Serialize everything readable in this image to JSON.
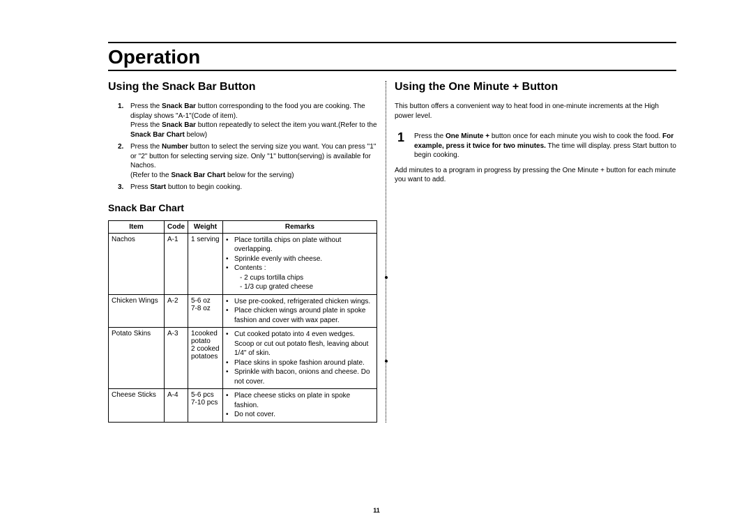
{
  "page_number": "11",
  "main_title": "Operation",
  "left": {
    "section_title": "Using the Snack Bar Button",
    "steps": [
      {
        "num": "1.",
        "html": "Press the <b>Snack Bar</b> button corresponding to the food you are cooking. The display shows \"A-1\"(Code of item).<br>Press the <b>Snack Bar</b> button repeatedly to select the item you want.(Refer to the <b>Snack Bar Chart</b> below)"
      },
      {
        "num": "2.",
        "html": "Press the <b>Number</b> button to select the serving size you want. You can press \"1\" or \"2\" button for selecting serving size. Only \"1\" button(serving) is available for Nachos.<br>(Refer to the <b>Snack Bar Chart</b> below for the serving)"
      },
      {
        "num": "3.",
        "html": "Press <b>Start</b> button to begin cooking."
      }
    ],
    "chart_title": "Snack Bar Chart",
    "headers": {
      "item": "Item",
      "code": "Code",
      "weight": "Weight",
      "remarks": "Remarks"
    },
    "rows": [
      {
        "item": "Nachos",
        "code": "A-1",
        "weight": "1 serving",
        "remarks": [
          {
            "text": "Place tortilla chips on plate without overlapping."
          },
          {
            "text": "Sprinkle evenly with cheese."
          },
          {
            "text": "Contents :",
            "subs": [
              "- 2 cups tortilla chips",
              "- 1/3 cup grated cheese"
            ]
          }
        ]
      },
      {
        "item": "Chicken Wings",
        "code": "A-2",
        "weight": "5-6 oz\n7-8 oz",
        "remarks": [
          {
            "text": "Use pre-cooked, refrigerated chicken wings."
          },
          {
            "text": "Place chicken wings around plate in spoke fashion and cover with wax paper."
          }
        ]
      },
      {
        "item": "Potato Skins",
        "code": "A-3",
        "weight": "1cooked potato\n2 cooked potatoes",
        "remarks": [
          {
            "text": "Cut cooked potato into 4 even wedges. Scoop or cut out potato flesh, leaving about 1/4\" of skin."
          },
          {
            "text": "Place skins in spoke fashion around plate."
          },
          {
            "text": "Sprinkle with bacon, onions and cheese. Do not cover."
          }
        ]
      },
      {
        "item": "Cheese Sticks",
        "code": "A-4",
        "weight": "5-6 pcs\n7-10 pcs",
        "remarks": [
          {
            "text": "Place cheese sticks on plate in spoke fashion."
          },
          {
            "text": "Do not cover."
          }
        ]
      }
    ]
  },
  "right": {
    "section_title": "Using the One Minute + Button",
    "intro": "This button offers a convenient way to heat food in one-minute increments at the High power level.",
    "step": {
      "num": "1",
      "html": "Press the <b>One Minute +</b> button once for each minute you wish to cook the food. <b>For example, press it twice for two minutes.</b> The time will display. press Start button to begin cooking."
    },
    "footer": "Add minutes to a program in progress by pressing the One Minute + button for each minute you want to add."
  }
}
